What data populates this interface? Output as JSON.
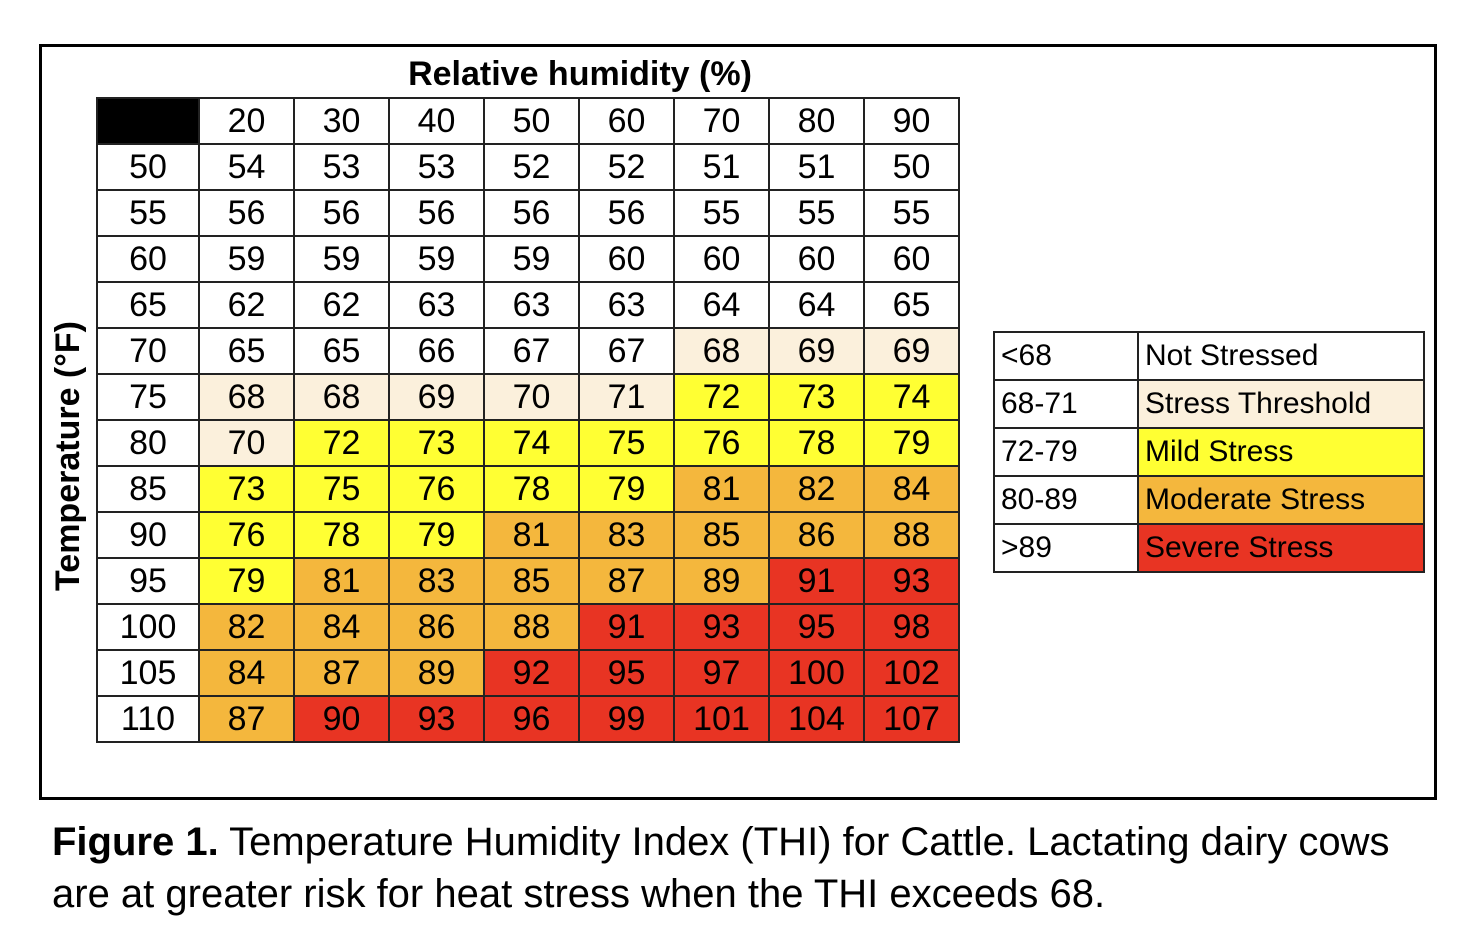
{
  "colors": {
    "not_stressed": "#ffffff",
    "stress_threshold": "#fbf0dc",
    "mild_stress": "#ffff33",
    "moderate_stress": "#f4b73d",
    "severe_stress": "#e83423"
  },
  "chart_data": {
    "type": "heatmap",
    "xlabel": "Relative humidity (%)",
    "ylabel": "Temperature (°F)",
    "x": [
      20,
      30,
      40,
      50,
      60,
      70,
      80,
      90
    ],
    "y": [
      50,
      55,
      60,
      65,
      70,
      75,
      80,
      85,
      90,
      95,
      100,
      105,
      110
    ],
    "values": [
      [
        54,
        53,
        53,
        52,
        52,
        51,
        51,
        50
      ],
      [
        56,
        56,
        56,
        56,
        56,
        55,
        55,
        55
      ],
      [
        59,
        59,
        59,
        59,
        60,
        60,
        60,
        60
      ],
      [
        62,
        62,
        63,
        63,
        63,
        64,
        64,
        65
      ],
      [
        65,
        65,
        66,
        67,
        67,
        68,
        69,
        69
      ],
      [
        68,
        68,
        69,
        70,
        71,
        72,
        73,
        74
      ],
      [
        70,
        72,
        73,
        74,
        75,
        76,
        78,
        79
      ],
      [
        73,
        75,
        76,
        78,
        79,
        81,
        82,
        84
      ],
      [
        76,
        78,
        79,
        81,
        83,
        85,
        86,
        88
      ],
      [
        79,
        81,
        83,
        85,
        87,
        89,
        91,
        93
      ],
      [
        82,
        84,
        86,
        88,
        91,
        93,
        95,
        98
      ],
      [
        84,
        87,
        89,
        92,
        95,
        97,
        100,
        102
      ],
      [
        87,
        90,
        93,
        96,
        99,
        101,
        104,
        107
      ]
    ],
    "legend": [
      {
        "range": "<68",
        "label": "Not Stressed",
        "min": null,
        "max": 67,
        "color": "#ffffff"
      },
      {
        "range": "68-71",
        "label": "Stress Threshold",
        "min": 68,
        "max": 71,
        "color": "#fbf0dc"
      },
      {
        "range": "72-79",
        "label": "Mild Stress",
        "min": 72,
        "max": 79,
        "color": "#ffff33"
      },
      {
        "range": "80-89",
        "label": "Moderate Stress",
        "min": 80,
        "max": 89,
        "color": "#f4b73d"
      },
      {
        "range": ">89",
        "label": "Severe Stress",
        "min": 90,
        "max": null,
        "color": "#e83423"
      }
    ],
    "legend_placement": "right"
  },
  "caption": {
    "label": "Figure 1.",
    "text": " Temperature Humidity Index (THI) for Cattle.  Lactating dairy cows are at greater risk for heat stress when the THI exceeds 68."
  }
}
